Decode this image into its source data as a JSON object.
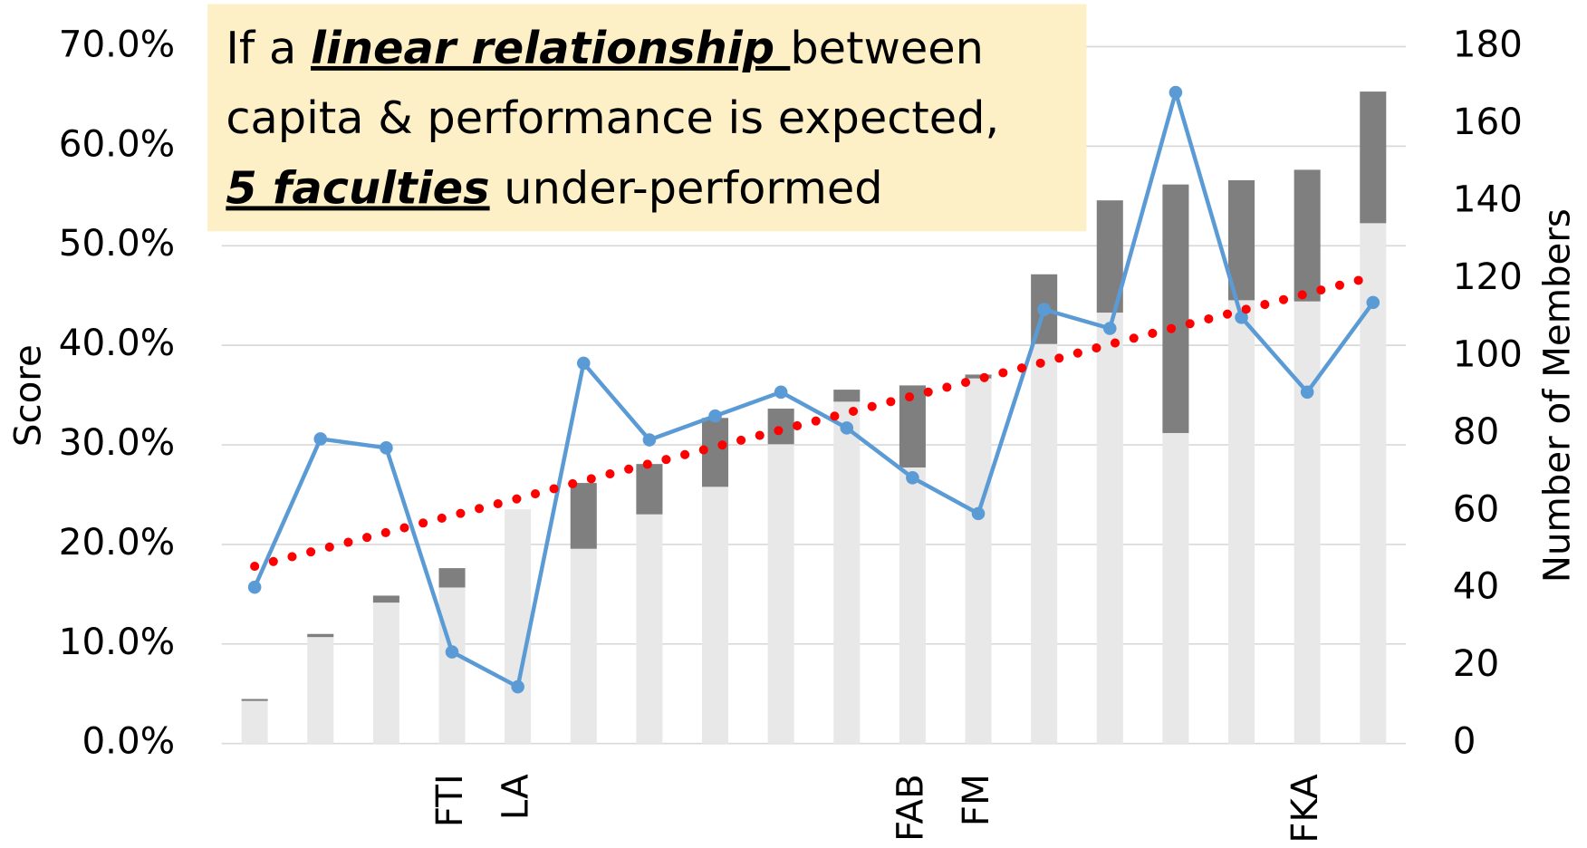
{
  "chart_data": {
    "type": "bar-line",
    "categories": [
      null,
      null,
      null,
      "FTI",
      "LA",
      null,
      null,
      null,
      null,
      null,
      "FAB",
      "FM",
      null,
      null,
      null,
      null,
      "FKA",
      null
    ],
    "series": [
      {
        "kind": "bar",
        "axis": "y2",
        "color": "#e8e8e8",
        "values": [
          11,
          27.5,
          36.4,
          40.3,
          60.5,
          50.3,
          59.2,
          66.3,
          77.3,
          88.3,
          71.3,
          94.3,
          103.2,
          111.3,
          80.2,
          114.5,
          114.2,
          134.4
        ]
      },
      {
        "kind": "bar",
        "axis": "y2",
        "color": "#7f7f7f",
        "values": [
          0.5,
          0.8,
          1.8,
          5,
          0,
          17,
          13,
          17.8,
          9.2,
          3.1,
          21.2,
          1,
          18,
          29,
          64.2,
          31,
          34,
          34
        ]
      },
      {
        "kind": "line",
        "axis": "y",
        "color": "#5b9bd5",
        "values": [
          15.7,
          30.6,
          29.7,
          9.2,
          5.7,
          38.2,
          30.5,
          32.9,
          35.3,
          31.7,
          26.7,
          23.1,
          43.6,
          41.7,
          65.4,
          42.8,
          35.3,
          44.3
        ]
      },
      {
        "kind": "trend",
        "axis": "y",
        "color": "#ff0000",
        "values": [
          17.8,
          19.5,
          21.2,
          22.9,
          24.6,
          26.4,
          28.1,
          29.8,
          31.5,
          33.2,
          34.9,
          36.6,
          38.3,
          40.1,
          41.8,
          43.5,
          45.2,
          46.9
        ]
      }
    ],
    "ylabel": "Score",
    "y2label": "Number of Members",
    "ylim": [
      0,
      70
    ],
    "yticks": [
      {
        "value": 0,
        "label": "0.0%"
      },
      {
        "value": 10,
        "label": "10.0%"
      },
      {
        "value": 20,
        "label": "20.0%"
      },
      {
        "value": 30,
        "label": "30.0%"
      },
      {
        "value": 40,
        "label": "40.0%"
      },
      {
        "value": 50,
        "label": "50.0%"
      },
      {
        "value": 60,
        "label": "60.0%"
      },
      {
        "value": 70,
        "label": "70.0%"
      }
    ],
    "y2lim": [
      0,
      180
    ],
    "y2ticks": [
      0,
      20,
      40,
      60,
      80,
      100,
      120,
      140,
      160,
      180
    ],
    "grid": true,
    "annotation": {
      "background": "#fdefc6",
      "lines": [
        [
          {
            "text": "If a "
          },
          {
            "text": "linear relationship ",
            "emphasis": true
          },
          {
            "text": "between"
          }
        ],
        [
          {
            "text": "capita & performance is expected,"
          }
        ],
        [
          {
            "text": "5 faculties",
            "emphasis": true
          },
          {
            "text": " under-performed"
          }
        ]
      ]
    }
  }
}
